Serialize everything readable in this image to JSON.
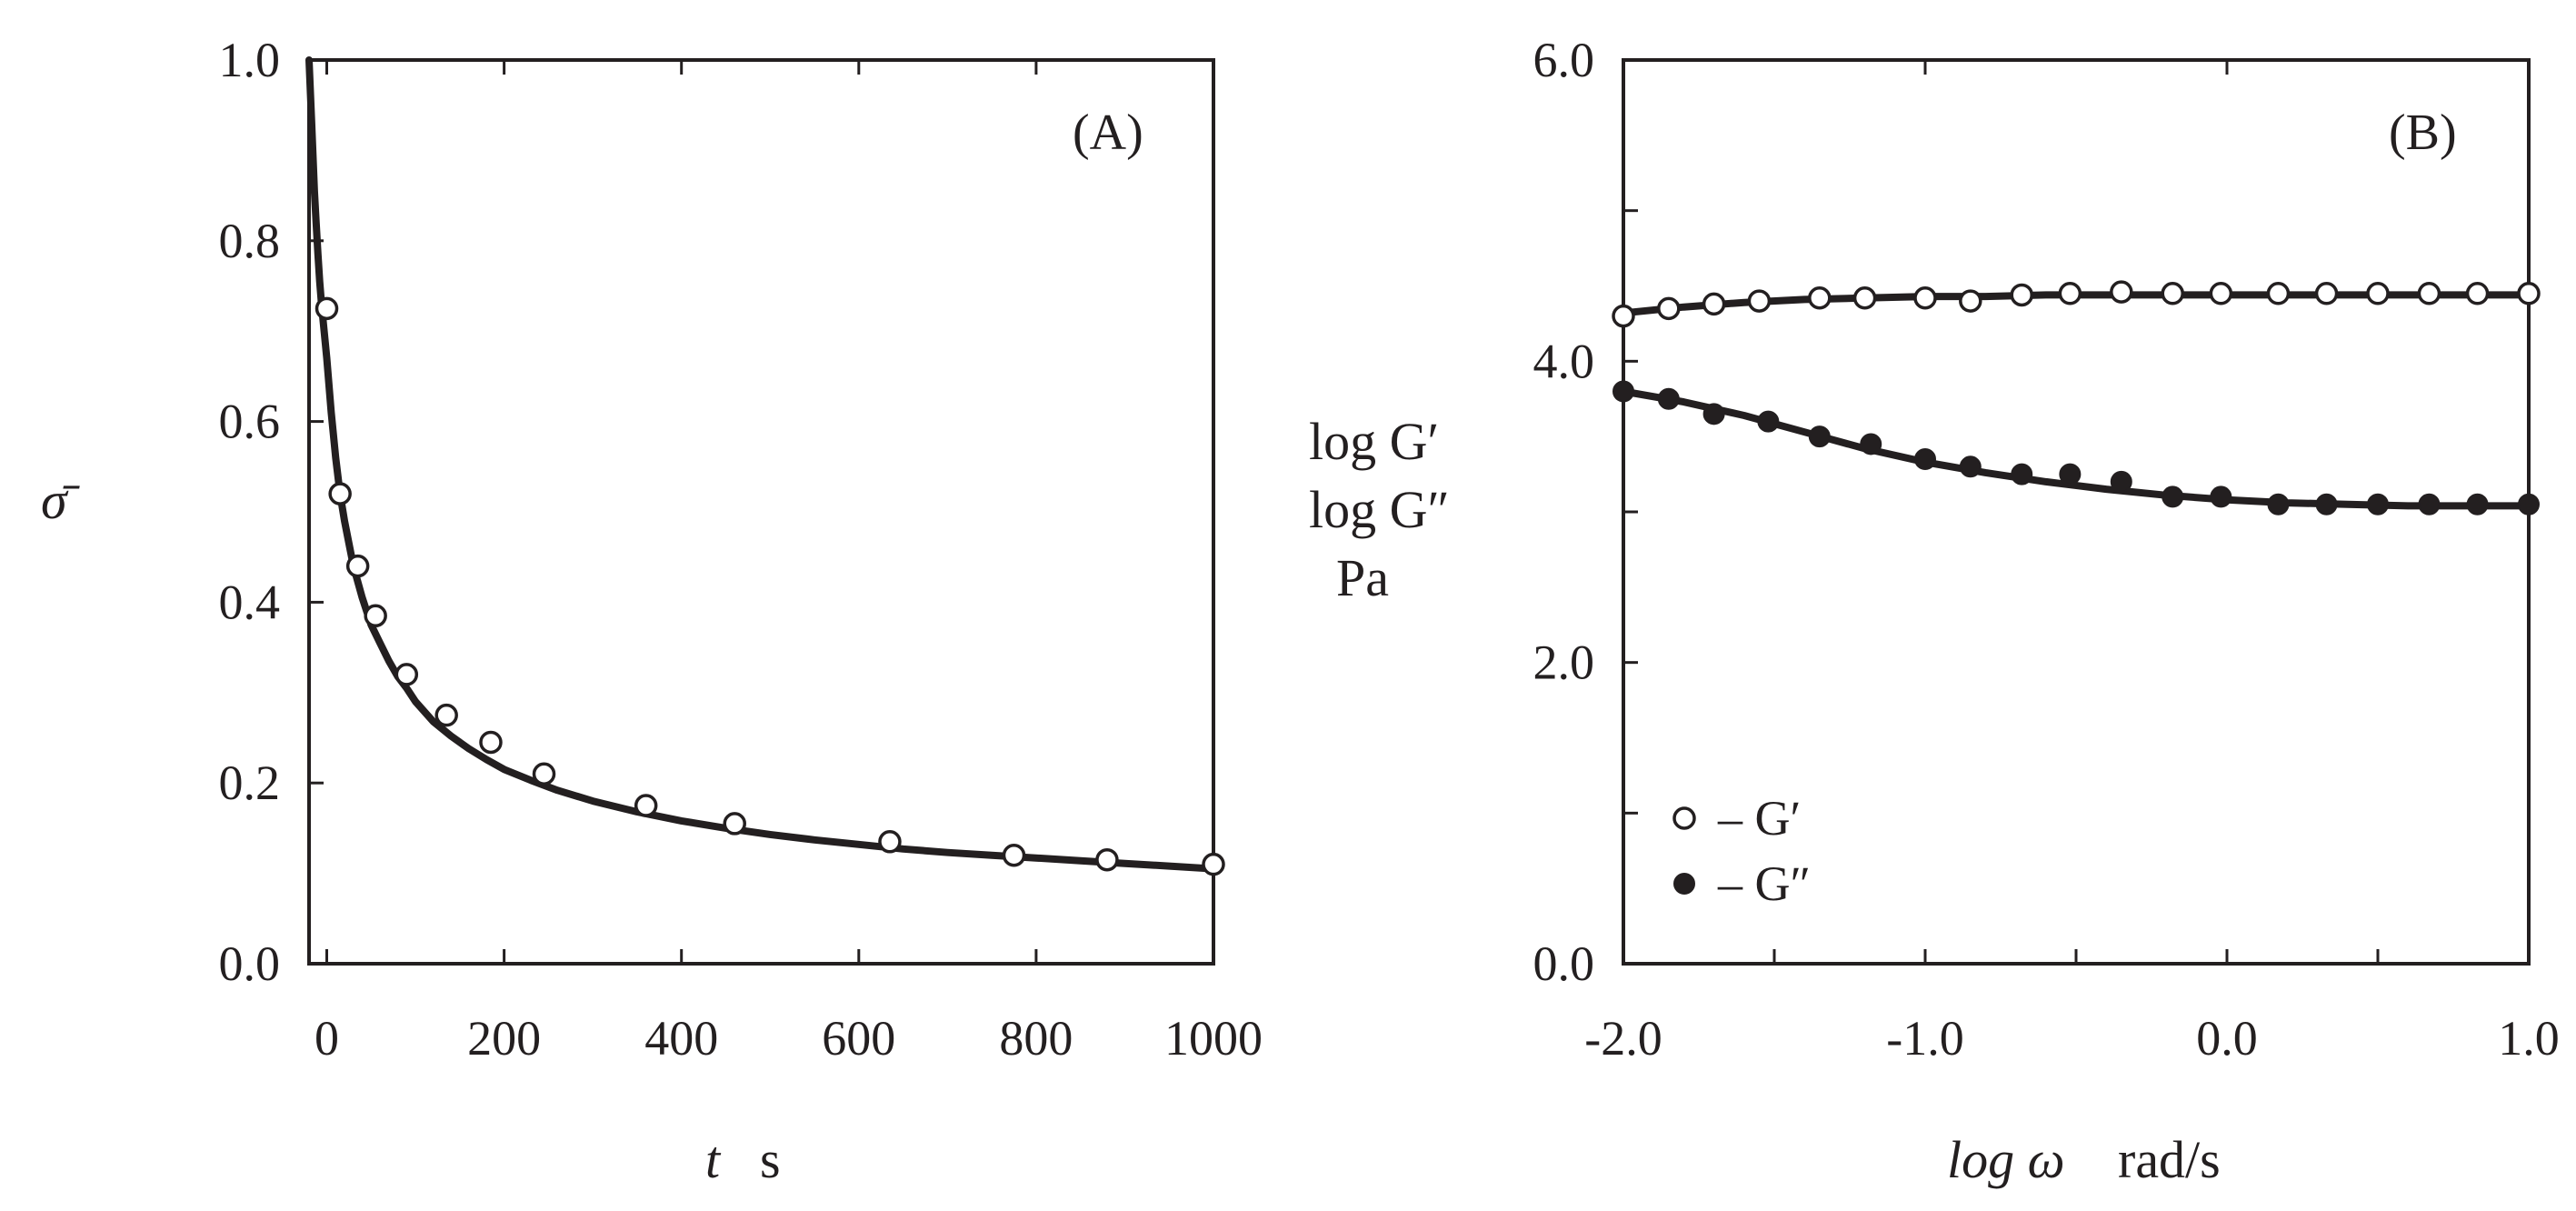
{
  "chart_data": [
    {
      "id": "A",
      "type": "scatter",
      "panel_label": "(A)",
      "ylabel": "σ̄",
      "xlabel_var": "t",
      "xlabel_unit": "s",
      "xlim": [
        -20,
        1000
      ],
      "ylim": [
        0,
        1.0
      ],
      "xticks": [
        0,
        200,
        400,
        600,
        800,
        1000
      ],
      "xtick_labels": [
        "0",
        "200",
        "400",
        "600",
        "800",
        "1000"
      ],
      "yticks": [
        0.0,
        0.2,
        0.4,
        0.6,
        0.8,
        1.0
      ],
      "ytick_labels": [
        "0.0",
        "0.2",
        "0.4",
        "0.6",
        "0.8",
        "1.0"
      ],
      "series": [
        {
          "name": "data",
          "marker": "open-circle",
          "x": [
            0,
            15,
            35,
            55,
            90,
            135,
            185,
            245,
            360,
            460,
            635,
            775,
            880,
            1000
          ],
          "y": [
            0.725,
            0.52,
            0.44,
            0.385,
            0.32,
            0.275,
            0.245,
            0.21,
            0.175,
            0.155,
            0.135,
            0.12,
            0.115,
            0.11
          ]
        },
        {
          "name": "fit",
          "marker": "line",
          "x": [
            -20,
            -17,
            -14,
            -12,
            -10,
            -8,
            -6,
            -3,
            0,
            5,
            10,
            15,
            20,
            25,
            30,
            40,
            50,
            60,
            70,
            80,
            90,
            100,
            120,
            140,
            160,
            180,
            200,
            230,
            260,
            300,
            350,
            400,
            450,
            500,
            550,
            600,
            650,
            700,
            750,
            800,
            850,
            900,
            950,
            1000
          ],
          "y": [
            1.0,
            0.93,
            0.855,
            0.82,
            0.785,
            0.755,
            0.73,
            0.7,
            0.67,
            0.61,
            0.56,
            0.52,
            0.49,
            0.465,
            0.44,
            0.405,
            0.375,
            0.355,
            0.335,
            0.318,
            0.305,
            0.29,
            0.268,
            0.252,
            0.238,
            0.226,
            0.215,
            0.203,
            0.192,
            0.18,
            0.168,
            0.158,
            0.15,
            0.143,
            0.137,
            0.132,
            0.127,
            0.123,
            0.12,
            0.117,
            0.114,
            0.111,
            0.108,
            0.105
          ]
        }
      ]
    },
    {
      "id": "B",
      "type": "scatter",
      "panel_label": "(B)",
      "ylabel_lines": [
        "log G′",
        "log G″",
        "Pa"
      ],
      "xlabel_var": "log ω",
      "xlabel_unit": "rad/s",
      "xlim": [
        -2.0,
        1.0
      ],
      "ylim": [
        0.0,
        6.0
      ],
      "xticks": [
        -2.0,
        -1.0,
        0.0,
        1.0
      ],
      "xtick_labels": [
        "-2.0",
        "-1.0",
        "0.0",
        "1.0"
      ],
      "xminor_ticks": [
        -1.5,
        -0.5,
        0.5
      ],
      "yticks": [
        0.0,
        2.0,
        4.0,
        6.0
      ],
      "ytick_labels": [
        "0.0",
        "2.0",
        "4.0",
        "6.0"
      ],
      "yminor_ticks": [
        1.0,
        3.0,
        5.0
      ],
      "legend": [
        {
          "marker": "open-circle",
          "label": "– G′"
        },
        {
          "marker": "filled-circle",
          "label": "– G″"
        }
      ],
      "series": [
        {
          "name": "G′",
          "marker": "open-circle",
          "x": [
            -2.0,
            -1.85,
            -1.7,
            -1.55,
            -1.35,
            -1.2,
            -1.0,
            -0.85,
            -0.68,
            -0.52,
            -0.35,
            -0.18,
            -0.02,
            0.17,
            0.33,
            0.5,
            0.67,
            0.83,
            1.0
          ],
          "y": [
            4.3,
            4.35,
            4.38,
            4.4,
            4.42,
            4.42,
            4.42,
            4.4,
            4.44,
            4.45,
            4.46,
            4.45,
            4.45,
            4.45,
            4.45,
            4.45,
            4.45,
            4.45,
            4.45
          ]
        },
        {
          "name": "G′ fit",
          "marker": "line",
          "x": [
            -2.0,
            -1.8,
            -1.6,
            -1.4,
            -1.2,
            -1.0,
            -0.8,
            -0.6,
            -0.4,
            -0.2,
            0.0,
            0.2,
            0.4,
            0.6,
            0.8,
            1.0
          ],
          "y": [
            4.32,
            4.36,
            4.39,
            4.41,
            4.42,
            4.43,
            4.43,
            4.44,
            4.44,
            4.44,
            4.44,
            4.44,
            4.44,
            4.44,
            4.44,
            4.44
          ]
        },
        {
          "name": "G″",
          "marker": "filled-circle",
          "x": [
            -2.0,
            -1.85,
            -1.7,
            -1.52,
            -1.35,
            -1.18,
            -1.0,
            -0.85,
            -0.68,
            -0.52,
            -0.35,
            -0.18,
            -0.02,
            0.17,
            0.33,
            0.5,
            0.67,
            0.83,
            1.0
          ],
          "y": [
            3.8,
            3.75,
            3.65,
            3.6,
            3.5,
            3.45,
            3.35,
            3.3,
            3.25,
            3.25,
            3.2,
            3.1,
            3.1,
            3.05,
            3.05,
            3.05,
            3.05,
            3.05,
            3.05
          ]
        },
        {
          "name": "G″ fit",
          "marker": "line",
          "x": [
            -2.0,
            -1.8,
            -1.6,
            -1.4,
            -1.2,
            -1.0,
            -0.8,
            -0.6,
            -0.4,
            -0.2,
            0.0,
            0.2,
            0.4,
            0.6,
            0.8,
            1.0
          ],
          "y": [
            3.8,
            3.73,
            3.64,
            3.53,
            3.42,
            3.33,
            3.26,
            3.2,
            3.15,
            3.11,
            3.08,
            3.06,
            3.05,
            3.04,
            3.04,
            3.04
          ]
        }
      ]
    }
  ]
}
